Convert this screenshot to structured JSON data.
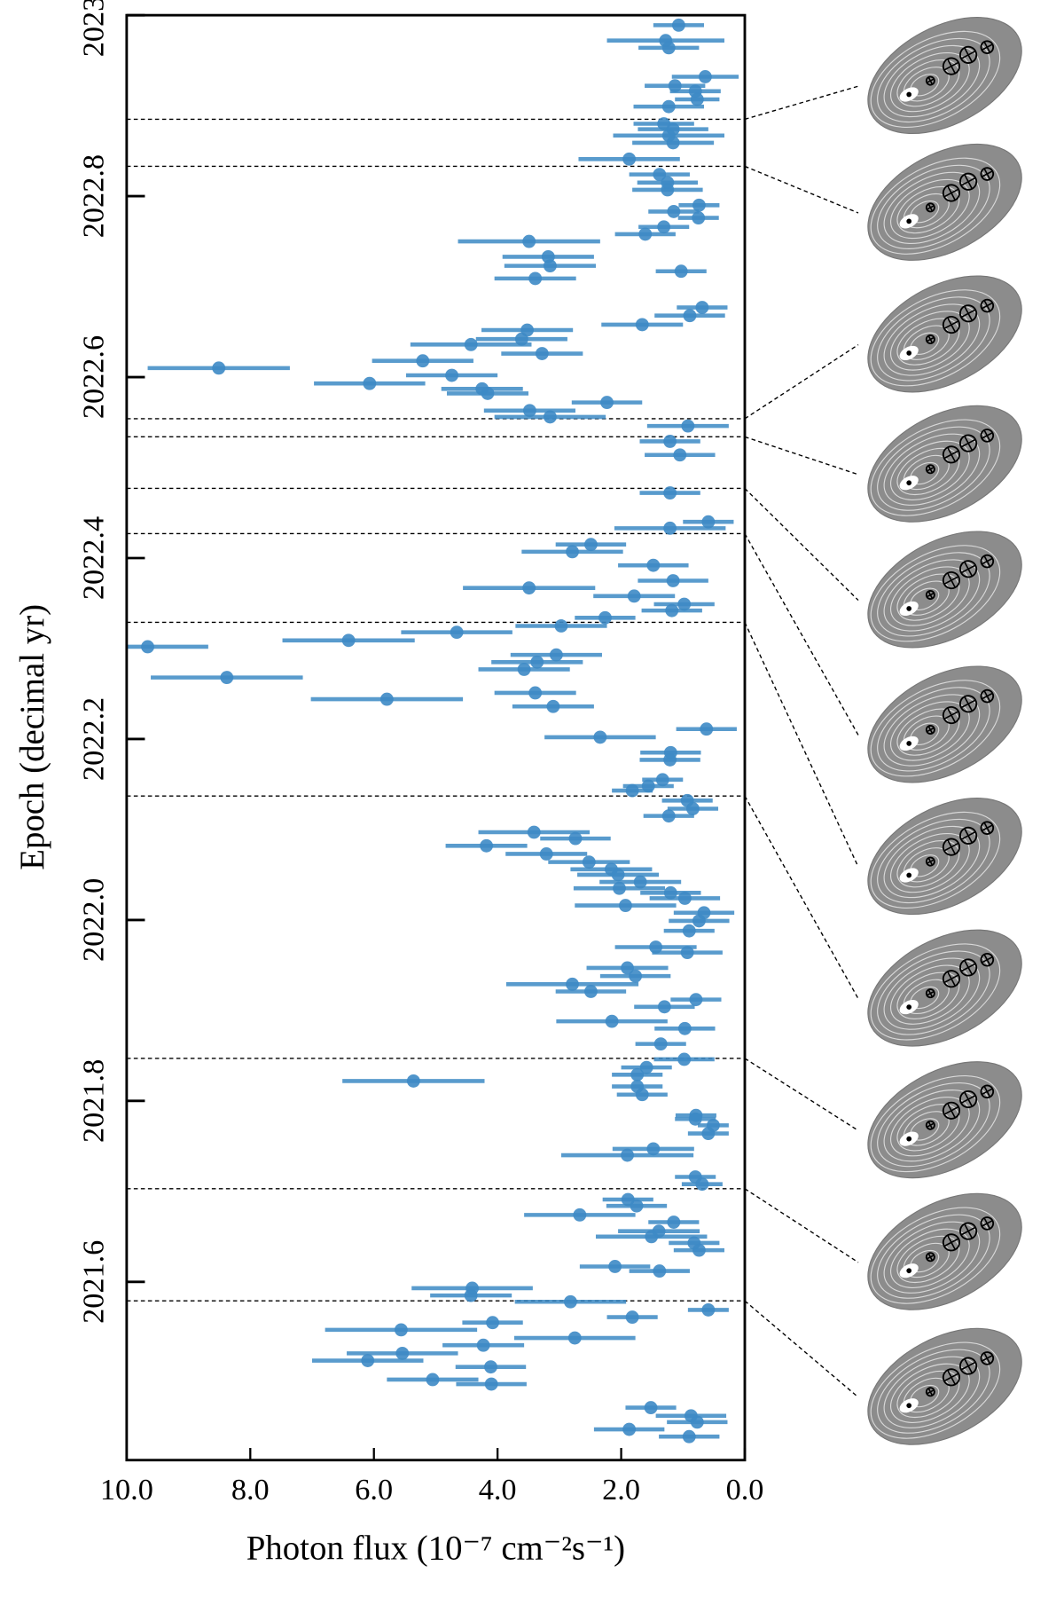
{
  "chart_data": {
    "type": "scatter",
    "xlabel": "Photon flux (10⁻⁷ cm⁻²s⁻¹)",
    "ylabel": "Epoch (decimal yr)",
    "xlim": [
      10.0,
      0.0
    ],
    "ylim": [
      2021.403,
      2023.0
    ],
    "xticks": [
      {
        "value": 10,
        "label": "10.0"
      },
      {
        "value": 8,
        "label": "8.0"
      },
      {
        "value": 6,
        "label": "6.0"
      },
      {
        "value": 4,
        "label": "4.0"
      },
      {
        "value": 2,
        "label": "2.0"
      },
      {
        "value": 0,
        "label": "0.0"
      }
    ],
    "yticks": [
      {
        "value": 2023,
        "label": "2023.0"
      },
      2022.8,
      2022.6,
      2022.4,
      2022.2,
      {
        "value": 2022,
        "label": "2022.0"
      },
      2021.8,
      2021.6
    ],
    "color": "#3d8ac5",
    "reference_epochs": [
      2022.885,
      2022.833,
      2022.554,
      2022.534,
      2022.477,
      2022.427,
      2022.329,
      2022.137,
      2021.847,
      2021.703,
      2021.579
    ],
    "series": [
      {
        "color": "#3d8ac5",
        "x": [
          1.07,
          1.28,
          1.23,
          0.64,
          1.13,
          0.8,
          0.77,
          1.23,
          1.31,
          1.16,
          1.23,
          1.16,
          1.87,
          1.38,
          1.25,
          1.25,
          0.74,
          1.15,
          0.75,
          1.31,
          1.61,
          3.49,
          3.18,
          3.15,
          3.39,
          1.03,
          0.69,
          0.89,
          1.66,
          3.52,
          3.61,
          4.43,
          3.28,
          5.21,
          8.51,
          4.74,
          6.07,
          4.25,
          4.16,
          2.23,
          3.48,
          3.15,
          0.92,
          1.21,
          1.05,
          1.21,
          0.59,
          1.21,
          2.49,
          2.79,
          1.48,
          1.16,
          3.49,
          1.79,
          0.98,
          1.18,
          2.26,
          2.97,
          4.66,
          9.66,
          6.41,
          3.05,
          3.36,
          3.57,
          8.38,
          3.39,
          5.79,
          3.1,
          0.62,
          2.34,
          1.2,
          1.21,
          1.33,
          1.56,
          1.82,
          0.93,
          0.84,
          1.23,
          3.41,
          2.74,
          4.18,
          3.21,
          2.52,
          2.16,
          2.05,
          1.69,
          2.03,
          1.2,
          0.97,
          1.93,
          0.66,
          0.74,
          0.9,
          1.44,
          0.93,
          1.9,
          1.77,
          2.79,
          2.49,
          0.79,
          1.3,
          2.15,
          0.97,
          1.36,
          0.98,
          1.59,
          1.74,
          5.36,
          1.74,
          1.66,
          0.79,
          0.8,
          0.51,
          0.59,
          1.48,
          1.9,
          0.8,
          0.69,
          1.89,
          1.75,
          2.67,
          1.15,
          1.39,
          1.51,
          0.82,
          0.74,
          2.1,
          1.38,
          4.41,
          4.43,
          2.82,
          0.59,
          1.82,
          4.08,
          5.56,
          2.75,
          4.23,
          5.54,
          6.1,
          4.11,
          5.05,
          4.1,
          1.52,
          0.87,
          0.77,
          1.87,
          0.9
        ],
        "y": [
          2022.989,
          2022.972,
          2022.964,
          2022.932,
          2022.922,
          2022.916,
          2022.907,
          2022.899,
          2022.88,
          2022.874,
          2022.867,
          2022.859,
          2022.841,
          2022.824,
          2022.815,
          2022.807,
          2022.79,
          2022.783,
          2022.776,
          2022.766,
          2022.758,
          2022.75,
          2022.733,
          2022.723,
          2022.709,
          2022.717,
          2022.677,
          2022.668,
          2022.658,
          2022.652,
          2022.642,
          2022.636,
          2022.626,
          2022.618,
          2022.61,
          2022.602,
          2022.593,
          2022.587,
          2022.582,
          2022.572,
          2022.563,
          2022.556,
          2022.546,
          2022.529,
          2022.514,
          2022.472,
          2022.44,
          2022.433,
          2022.415,
          2022.407,
          2022.392,
          2022.375,
          2022.367,
          2022.358,
          2022.349,
          2022.342,
          2022.334,
          2022.325,
          2022.318,
          2022.302,
          2022.309,
          2022.293,
          2022.285,
          2022.277,
          2022.268,
          2022.251,
          2022.244,
          2022.236,
          2022.211,
          2022.202,
          2022.185,
          2022.177,
          2022.155,
          2022.148,
          2022.143,
          2022.132,
          2022.123,
          2022.115,
          2022.097,
          2022.09,
          2022.082,
          2022.073,
          2022.064,
          2022.056,
          2022.05,
          2022.042,
          2022.035,
          2022.03,
          2022.024,
          2022.016,
          2022.008,
          2021.999,
          2021.988,
          2021.97,
          2021.964,
          2021.947,
          2021.938,
          2021.929,
          2021.921,
          2021.912,
          2021.904,
          2021.888,
          2021.88,
          2021.863,
          2021.846,
          2021.837,
          2021.829,
          2021.822,
          2021.816,
          2021.807,
          2021.784,
          2021.78,
          2021.773,
          2021.764,
          2021.747,
          2021.74,
          2021.716,
          2021.708,
          2021.691,
          2021.684,
          2021.674,
          2021.666,
          2021.656,
          2021.65,
          2021.643,
          2021.635,
          2021.617,
          2021.612,
          2021.593,
          2021.585,
          2021.578,
          2021.569,
          2021.561,
          2021.555,
          2021.547,
          2021.538,
          2021.53,
          2021.521,
          2021.513,
          2021.506,
          2021.492,
          2021.487,
          2021.461,
          2021.452,
          2021.445,
          2021.437,
          2021.429
        ],
        "xerr": [
          0.41,
          0.95,
          0.49,
          0.54,
          0.49,
          0.41,
          0.36,
          0.57,
          0.49,
          0.57,
          0.9,
          0.66,
          0.82,
          0.49,
          0.49,
          0.57,
          0.33,
          0.41,
          0.33,
          0.41,
          0.49,
          1.15,
          0.74,
          0.74,
          0.66,
          0.41,
          0.41,
          0.57,
          0.66,
          0.74,
          0.74,
          0.98,
          0.66,
          0.82,
          1.15,
          0.74,
          0.9,
          0.66,
          0.66,
          0.57,
          0.74,
          0.9,
          0.66,
          0.49,
          0.57,
          0.49,
          0.41,
          0.9,
          0.57,
          0.82,
          0.57,
          0.57,
          1.07,
          0.66,
          0.49,
          0.49,
          0.49,
          0.74,
          0.9,
          0.98,
          1.07,
          0.74,
          0.74,
          0.74,
          1.23,
          0.66,
          1.23,
          0.66,
          0.49,
          0.9,
          0.49,
          0.49,
          0.33,
          0.41,
          0.33,
          0.41,
          0.41,
          0.41,
          0.9,
          0.57,
          0.66,
          0.66,
          0.66,
          0.66,
          0.66,
          0.66,
          0.74,
          0.49,
          0.57,
          0.82,
          0.49,
          0.49,
          0.41,
          0.66,
          0.57,
          0.66,
          0.57,
          1.07,
          0.57,
          0.41,
          0.49,
          0.9,
          0.49,
          0.41,
          0.49,
          0.41,
          0.41,
          1.15,
          0.41,
          0.41,
          0.33,
          0.33,
          0.25,
          0.33,
          0.66,
          1.07,
          0.33,
          0.33,
          0.41,
          0.49,
          0.9,
          0.41,
          0.66,
          0.9,
          0.41,
          0.41,
          0.57,
          0.49,
          0.98,
          0.66,
          0.9,
          0.33,
          0.41,
          0.49,
          1.23,
          0.98,
          0.66,
          0.9,
          0.9,
          0.57,
          0.74,
          0.57,
          0.41,
          0.57,
          0.49,
          0.57,
          0.49
        ]
      }
    ]
  }
}
